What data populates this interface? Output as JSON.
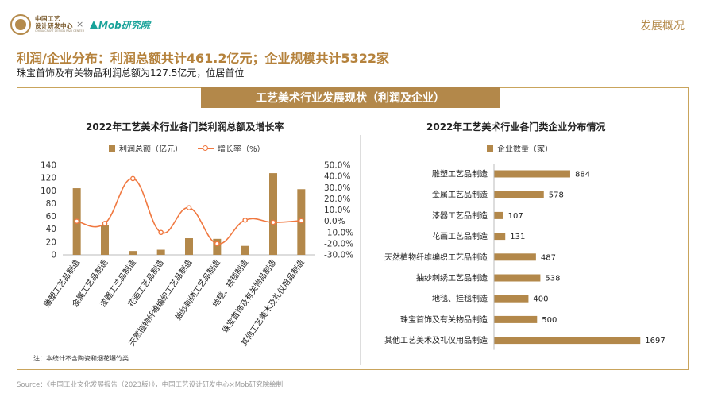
{
  "header": {
    "logo_line1": "中国工艺",
    "logo_line2": "设计研发中心",
    "logo_line3": "CHINA CRAFT DESIGN R&D CENTER",
    "separator": "×",
    "partner_logo": "Mob研究院",
    "section_label": "发展概况"
  },
  "headline": "利润/企业分布：利润总额共计461.2亿元；企业规模共计5322家",
  "subline": "珠宝首饰及有关物品利润总额为127.5亿元，位居首位",
  "banner": "工艺美术行业发展现状（利润及企业）",
  "note": "注：本统计不含陶瓷和烟花爆竹类",
  "source": "Source：《中国工业文化发展报告（2023版）》，中国工艺设计研发中心×Mob研究院绘制",
  "colors": {
    "accent": "#b3884a",
    "line": "#f07840",
    "frame": "#c9a45c"
  },
  "chart_data": [
    {
      "type": "bar+line",
      "title": "2022年工艺美术行业各门类利润总额及增长率",
      "categories": [
        "雕塑工艺品制造",
        "金属工艺品制造",
        "漆器工艺品制造",
        "花画工艺品制造",
        "天然植物纤维编织工艺品制造",
        "抽纱刺绣工艺品制造",
        "地毯、挂毯制造",
        "珠宝首饰及有关物品制造",
        "其他工艺美术及礼仪用品制造"
      ],
      "series": [
        {
          "name": "利润总额（亿元）",
          "type": "bar",
          "axis": "left",
          "values": [
            104,
            47,
            6,
            8,
            26,
            25,
            14,
            127.5,
            102.5
          ]
        },
        {
          "name": "增长率（%）",
          "type": "line",
          "axis": "right",
          "values": [
            0.0,
            -2.0,
            38.0,
            -10.0,
            12.0,
            -20.0,
            1.0,
            -1.0,
            0.5
          ]
        }
      ],
      "y_left": {
        "min": 0,
        "max": 140,
        "ticks": [
          "0",
          "20",
          "40",
          "60",
          "80",
          "100",
          "120",
          "140"
        ]
      },
      "y_right": {
        "min": -30,
        "max": 50,
        "ticks": [
          "-30.0%",
          "-20.0%",
          "-10.0%",
          "0.0%",
          "10.0%",
          "20.0%",
          "30.0%",
          "40.0%",
          "50.0%"
        ]
      },
      "grid": false,
      "legend": "top-center"
    },
    {
      "type": "bar",
      "orientation": "horizontal",
      "title": "2022年工艺美术行业各门类企业分布情况",
      "categories": [
        "雕塑工艺品制造",
        "金属工艺品制造",
        "漆器工艺品制造",
        "花画工艺品制造",
        "天然植物纤维编织工艺品制造",
        "抽纱刺绣工艺品制造",
        "地毯、挂毯制造",
        "珠宝首饰及有关物品制造",
        "其他工艺美术及礼仪用品制造"
      ],
      "series": [
        {
          "name": "企业数量（家）",
          "values": [
            884,
            578,
            107,
            131,
            487,
            538,
            400,
            500,
            1697
          ],
          "labels": [
            "884",
            "578",
            "107",
            "131",
            "487",
            "538",
            "400",
            "500",
            "1697"
          ]
        }
      ],
      "x_max": 1750,
      "grid": false,
      "legend": "top-center"
    }
  ]
}
